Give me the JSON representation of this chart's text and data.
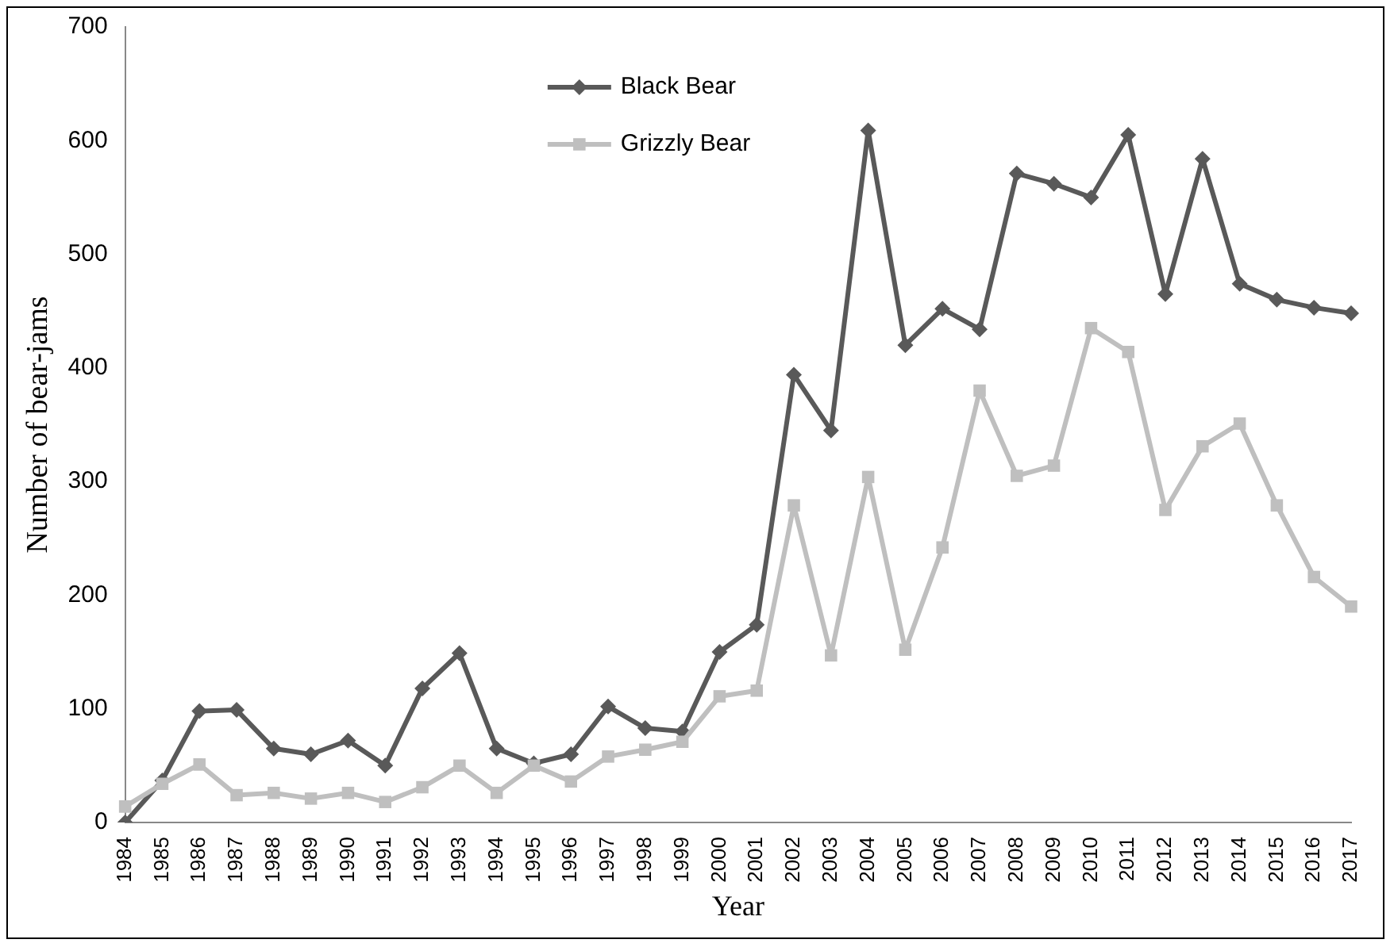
{
  "chart_data": {
    "type": "line",
    "xlabel": "Year",
    "ylabel": "Number of bear-jams",
    "categories": [
      "1984",
      "1985",
      "1986",
      "1987",
      "1988",
      "1989",
      "1990",
      "1991",
      "1992",
      "1993",
      "1994",
      "1995",
      "1996",
      "1997",
      "1998",
      "1999",
      "2000",
      "2001",
      "2002",
      "2003",
      "2004",
      "2005",
      "2006",
      "2007",
      "2008",
      "2009",
      "2010",
      "2011",
      "2012",
      "2013",
      "2014",
      "2015",
      "2016",
      "2017"
    ],
    "series": [
      {
        "name": "Black Bear",
        "color": "#595959",
        "marker": "diamond",
        "values": [
          0,
          37,
          98,
          99,
          65,
          60,
          72,
          50,
          118,
          149,
          65,
          52,
          60,
          102,
          83,
          80,
          150,
          174,
          394,
          345,
          609,
          420,
          452,
          434,
          571,
          562,
          550,
          605,
          465,
          584,
          474,
          460,
          453,
          448
        ]
      },
      {
        "name": "Grizzly Bear",
        "color": "#bfbfbf",
        "marker": "square",
        "values": [
          14,
          34,
          51,
          24,
          26,
          21,
          26,
          18,
          31,
          50,
          26,
          50,
          36,
          58,
          64,
          71,
          111,
          116,
          279,
          147,
          304,
          152,
          242,
          380,
          305,
          314,
          435,
          414,
          275,
          331,
          351,
          279,
          216,
          190
        ]
      }
    ],
    "ylim": [
      0,
      700
    ],
    "yticks": [
      0,
      100,
      200,
      300,
      400,
      500,
      600,
      700
    ],
    "grid": false,
    "legend": "top",
    "line_style": "solid"
  }
}
